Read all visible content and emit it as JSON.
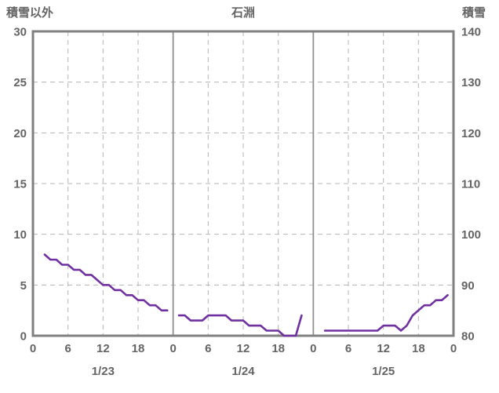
{
  "header": {
    "left_axis_title": "積雪以外",
    "station_title": "石淵",
    "right_axis_title": "積雪"
  },
  "chart_data": {
    "type": "line",
    "title": "石淵",
    "left_axis": {
      "label": "積雪以外",
      "min": 0,
      "max": 30,
      "ticks": [
        0,
        5,
        10,
        15,
        20,
        25,
        30
      ]
    },
    "right_axis": {
      "label": "積雪",
      "min": 80,
      "max": 140,
      "ticks": [
        80,
        90,
        100,
        110,
        120,
        130,
        140
      ]
    },
    "x_axis": {
      "min_hour": 0,
      "max_hour": 72,
      "tick_interval_hours": 6,
      "tick_labels": [
        "0",
        "6",
        "12",
        "18",
        "0",
        "6",
        "12",
        "18",
        "0",
        "6",
        "12",
        "18",
        "0"
      ],
      "day_labels": [
        "1/23",
        "1/24",
        "1/25"
      ]
    },
    "series": [
      {
        "name": "積雪",
        "axis": "right",
        "color": "#7030A0",
        "segments": [
          [
            [
              2,
              96
            ],
            [
              3,
              95
            ],
            [
              4,
              95
            ],
            [
              5,
              94
            ],
            [
              6,
              94
            ],
            [
              7,
              93
            ],
            [
              8,
              93
            ],
            [
              9,
              92
            ],
            [
              10,
              92
            ],
            [
              11,
              91
            ],
            [
              12,
              90
            ],
            [
              13,
              90
            ],
            [
              14,
              89
            ],
            [
              15,
              89
            ],
            [
              16,
              88
            ],
            [
              17,
              88
            ],
            [
              18,
              87
            ],
            [
              19,
              87
            ],
            [
              20,
              86
            ],
            [
              21,
              86
            ],
            [
              22,
              85
            ],
            [
              23,
              85
            ]
          ],
          [
            [
              25,
              84
            ],
            [
              26,
              84
            ],
            [
              27,
              83
            ],
            [
              28,
              83
            ],
            [
              29,
              83
            ],
            [
              30,
              84
            ],
            [
              31,
              84
            ],
            [
              32,
              84
            ],
            [
              33,
              84
            ],
            [
              34,
              83
            ],
            [
              35,
              83
            ],
            [
              36,
              83
            ],
            [
              37,
              82
            ],
            [
              38,
              82
            ],
            [
              39,
              82
            ],
            [
              40,
              81
            ],
            [
              41,
              81
            ],
            [
              42,
              81
            ],
            [
              43,
              80
            ],
            [
              44,
              80
            ],
            [
              45,
              80
            ],
            [
              46,
              84
            ]
          ],
          [
            [
              50,
              81
            ],
            [
              51,
              81
            ],
            [
              52,
              81
            ],
            [
              53,
              81
            ],
            [
              54,
              81
            ],
            [
              55,
              81
            ],
            [
              56,
              81
            ],
            [
              57,
              81
            ],
            [
              58,
              81
            ],
            [
              59,
              81
            ],
            [
              60,
              82
            ],
            [
              61,
              82
            ],
            [
              62,
              82
            ],
            [
              63,
              81
            ],
            [
              64,
              82
            ],
            [
              65,
              84
            ],
            [
              66,
              85
            ],
            [
              67,
              86
            ],
            [
              68,
              86
            ],
            [
              69,
              87
            ],
            [
              70,
              87
            ],
            [
              71,
              88
            ]
          ]
        ]
      }
    ],
    "layout_hints": {
      "grid": "on",
      "horizontal_gridlines": "dashed",
      "vertical_gridlines": "dashed, solid at day boundaries",
      "legend": "none"
    },
    "colors": {
      "line": "#7030A0",
      "grid": "#b4b4b4",
      "day_line": "#8f8f8f",
      "border": "#808080",
      "text": "#646464"
    }
  }
}
